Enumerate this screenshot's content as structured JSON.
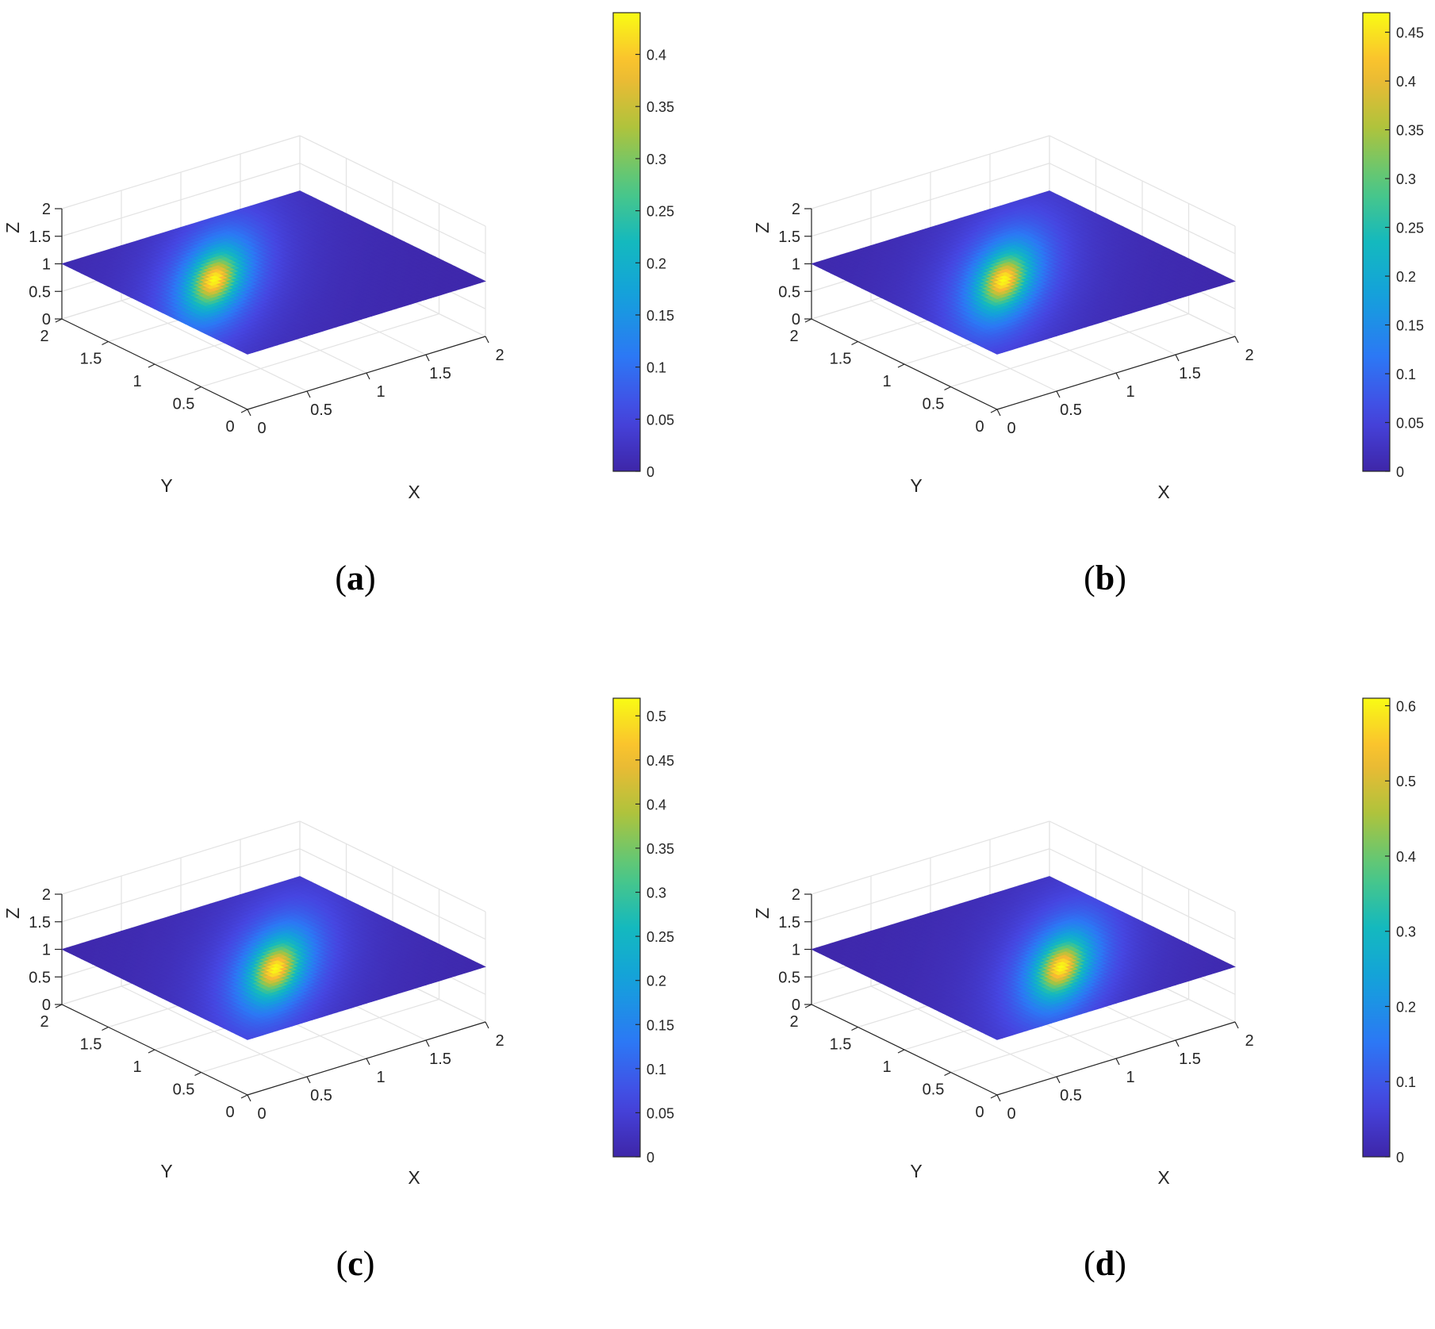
{
  "chart_data": [
    {
      "type": "surface",
      "panel_label": "a",
      "xlabel": "X",
      "ylabel": "Y",
      "zlabel": "Z",
      "xlim": [
        0,
        2
      ],
      "ylim": [
        0,
        2
      ],
      "zlim": [
        0,
        2
      ],
      "x_ticks": [
        "0",
        "0.5",
        "1",
        "1.5",
        "2"
      ],
      "y_ticks": [
        "0",
        "0.5",
        "1",
        "1.5",
        "2"
      ],
      "z_ticks": [
        "0",
        "0.5",
        "1",
        "1.5",
        "2"
      ],
      "plane_z": 1,
      "peak": {
        "x": 0.62,
        "y": 1.15,
        "value": 0.44
      },
      "colorbar": {
        "min": 0,
        "max": 0.44,
        "ticks": [
          "0",
          "0.05",
          "0.1",
          "0.15",
          "0.2",
          "0.25",
          "0.3",
          "0.35",
          "0.4"
        ],
        "tick_values": [
          0,
          0.05,
          0.1,
          0.15,
          0.2,
          0.25,
          0.3,
          0.35,
          0.4
        ]
      },
      "grid": true,
      "colormap": "parula"
    },
    {
      "type": "surface",
      "panel_label": "b",
      "xlabel": "X",
      "ylabel": "Y",
      "zlabel": "Z",
      "xlim": [
        0,
        2
      ],
      "ylim": [
        0,
        2
      ],
      "zlim": [
        0,
        2
      ],
      "x_ticks": [
        "0",
        "0.5",
        "1",
        "1.5",
        "2"
      ],
      "y_ticks": [
        "0",
        "0.5",
        "1",
        "1.5",
        "2"
      ],
      "z_ticks": [
        "0",
        "0.5",
        "1",
        "1.5",
        "2"
      ],
      "plane_z": 1,
      "peak": {
        "x": 0.82,
        "y": 0.98,
        "value": 0.47
      },
      "colorbar": {
        "min": 0,
        "max": 0.47,
        "ticks": [
          "0",
          "0.05",
          "0.1",
          "0.15",
          "0.2",
          "0.25",
          "0.3",
          "0.35",
          "0.4",
          "0.45"
        ],
        "tick_values": [
          0,
          0.05,
          0.1,
          0.15,
          0.2,
          0.25,
          0.3,
          0.35,
          0.4,
          0.45
        ]
      },
      "grid": true,
      "colormap": "parula"
    },
    {
      "type": "surface",
      "panel_label": "c",
      "xlabel": "X",
      "ylabel": "Y",
      "zlabel": "Z",
      "xlim": [
        0,
        2
      ],
      "ylim": [
        0,
        2
      ],
      "zlim": [
        0,
        2
      ],
      "x_ticks": [
        "0",
        "0.5",
        "1",
        "1.5",
        "2"
      ],
      "y_ticks": [
        "0",
        "0.5",
        "1",
        "1.5",
        "2"
      ],
      "z_ticks": [
        "0",
        "0.5",
        "1",
        "1.5",
        "2"
      ],
      "plane_z": 1,
      "peak": {
        "x": 0.9,
        "y": 0.85,
        "value": 0.52
      },
      "colorbar": {
        "min": 0,
        "max": 0.52,
        "ticks": [
          "0",
          "0.05",
          "0.1",
          "0.15",
          "0.2",
          "0.25",
          "0.3",
          "0.35",
          "0.4",
          "0.45",
          "0.5"
        ],
        "tick_values": [
          0,
          0.05,
          0.1,
          0.15,
          0.2,
          0.25,
          0.3,
          0.35,
          0.4,
          0.45,
          0.5
        ]
      },
      "grid": true,
      "colormap": "parula"
    },
    {
      "type": "surface",
      "panel_label": "d",
      "xlabel": "X",
      "ylabel": "Y",
      "zlabel": "Z",
      "xlim": [
        0,
        2
      ],
      "ylim": [
        0,
        2
      ],
      "zlim": [
        0,
        2
      ],
      "x_ticks": [
        "0",
        "0.5",
        "1",
        "1.5",
        "2"
      ],
      "y_ticks": [
        "0",
        "0.5",
        "1",
        "1.5",
        "2"
      ],
      "z_ticks": [
        "0",
        "0.5",
        "1",
        "1.5",
        "2"
      ],
      "plane_z": 1,
      "peak": {
        "x": 1.1,
        "y": 0.72,
        "value": 0.61
      },
      "colorbar": {
        "min": 0,
        "max": 0.61,
        "ticks": [
          "0",
          "0.1",
          "0.2",
          "0.3",
          "0.4",
          "0.5",
          "0.6"
        ],
        "tick_values": [
          0,
          0.1,
          0.2,
          0.3,
          0.4,
          0.5,
          0.6
        ]
      },
      "grid": true,
      "colormap": "parula"
    }
  ]
}
